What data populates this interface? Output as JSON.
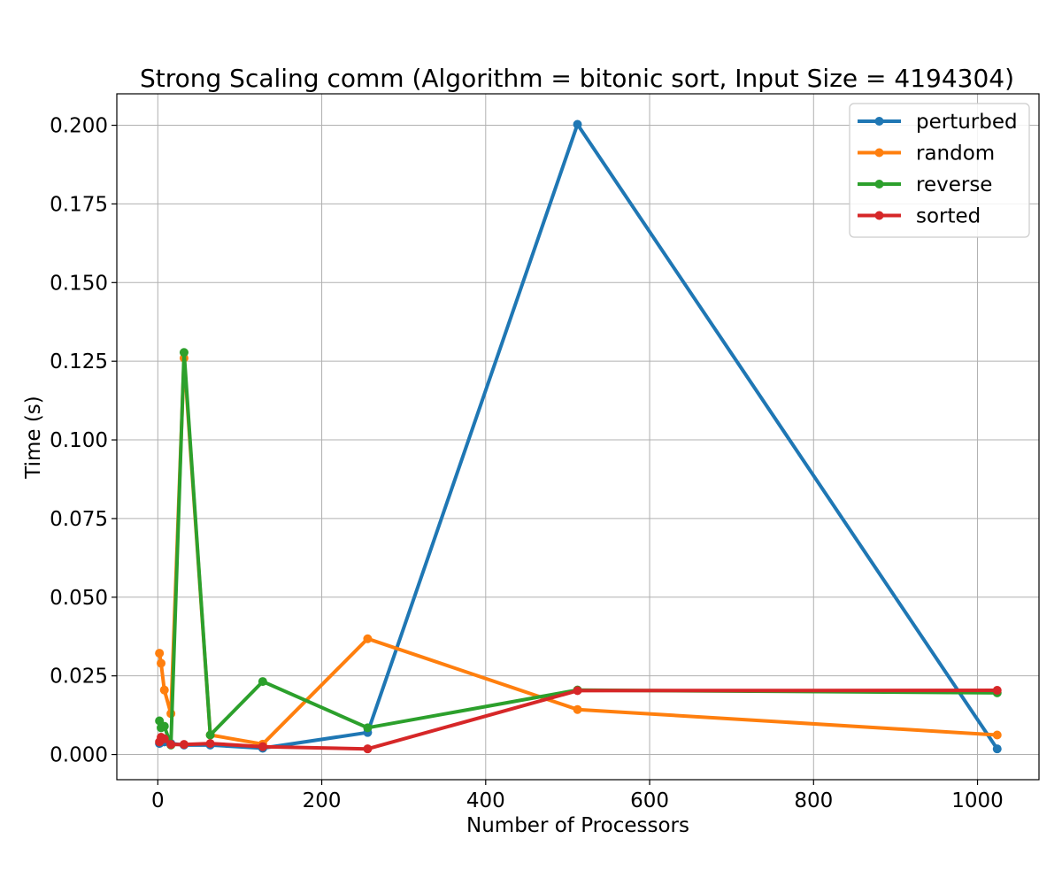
{
  "chart_data": {
    "type": "line",
    "title": "Strong Scaling comm (Algorithm = bitonic sort, Input Size = 4194304)",
    "xlabel": "Number of Processors",
    "ylabel": "Time (s)",
    "xlim": [
      -50,
      1075
    ],
    "ylim": [
      -0.008,
      0.21
    ],
    "xticks": [
      0,
      200,
      400,
      600,
      800,
      1000
    ],
    "xtick_labels": [
      "0",
      "200",
      "400",
      "600",
      "800",
      "1000"
    ],
    "yticks": [
      0.0,
      0.025,
      0.05,
      0.075,
      0.1,
      0.125,
      0.15,
      0.175,
      0.2
    ],
    "ytick_labels": [
      "0.000",
      "0.025",
      "0.050",
      "0.075",
      "0.100",
      "0.125",
      "0.150",
      "0.175",
      "0.200"
    ],
    "grid": true,
    "legend_position": "top-right",
    "x": [
      2,
      4,
      8,
      16,
      32,
      64,
      128,
      256,
      512,
      1024
    ],
    "series": [
      {
        "name": "perturbed",
        "color": "#1f77b4",
        "values": [
          0.0035,
          0.0045,
          0.004,
          0.0035,
          0.003,
          0.003,
          0.002,
          0.007,
          0.2003,
          0.0018
        ]
      },
      {
        "name": "random",
        "color": "#ff7f0e",
        "values": [
          0.0322,
          0.029,
          0.0205,
          0.013,
          0.126,
          0.0062,
          0.0033,
          0.0368,
          0.0143,
          0.0062
        ]
      },
      {
        "name": "reverse",
        "color": "#2ca02c",
        "values": [
          0.0107,
          0.0085,
          0.009,
          0.003,
          0.1278,
          0.0062,
          0.0232,
          0.0085,
          0.0205,
          0.0196
        ]
      },
      {
        "name": "sorted",
        "color": "#d62728",
        "values": [
          0.004,
          0.0055,
          0.005,
          0.0032,
          0.0032,
          0.0035,
          0.0025,
          0.0018,
          0.0203,
          0.0204
        ]
      }
    ]
  }
}
